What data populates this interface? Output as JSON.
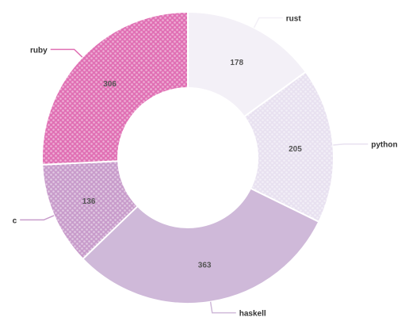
{
  "chart_data": {
    "type": "pie",
    "variant": "donut",
    "labels": [
      "rust",
      "python",
      "haskell",
      "c",
      "ruby"
    ],
    "values": [
      178,
      205,
      363,
      136,
      306
    ],
    "colors": [
      "#f3f0f7",
      "#e8e1f0",
      "#cfb9d9",
      "#c89ccb",
      "#e070b4"
    ],
    "patterned": [
      false,
      true,
      false,
      true,
      true
    ],
    "start_angle_deg": 0,
    "direction": "clockwise",
    "show_values_inside": true,
    "legend": "none"
  }
}
